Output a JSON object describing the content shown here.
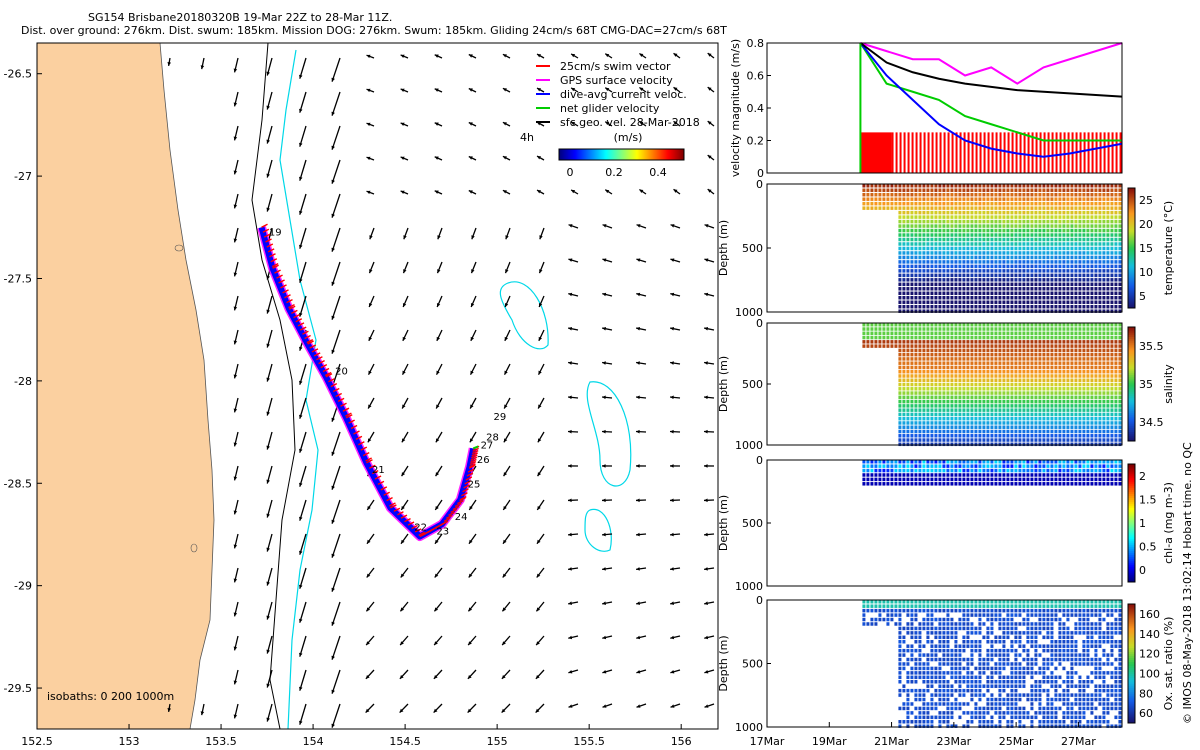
{
  "header": {
    "line1": "SG154 Brisbane20180320B 19-Mar 22Z to 28-Mar 11Z.",
    "line2": "Dist. over ground: 276km. Dist. swum: 185km. Mission DOG: 276km. Swum: 185km. Gliding 24cm/s 68T CMG-DAC=27cm/s 68T"
  },
  "legend": {
    "items": [
      {
        "label": "25cm/s swim vector",
        "color": "#ff0000"
      },
      {
        "label": "GPS surface velocity",
        "color": "#ff00ff"
      },
      {
        "label": "dive-avg current veloc.",
        "color": "#0000ff"
      },
      {
        "label": "net glider velocity",
        "color": "#00cc00"
      },
      {
        "label": "sfc geo. vel. 28-Mar-2018",
        "color": "#000000"
      }
    ],
    "time_tag": "4h",
    "colorbar_title": "(m/s)",
    "colorbar_ticks": [
      "0",
      "0.2",
      "0.4"
    ]
  },
  "isobaths_label": "isobaths: 0   200  1000m",
  "credit": "© IMOS 08-May-2018 13:02:14 Hobart time. no QC",
  "chart_data": [
    {
      "type": "map",
      "xlim": [
        152.5,
        156.2
      ],
      "ylim": [
        -29.7,
        -26.35
      ],
      "x_ticks": [
        "152.5",
        "153",
        "153.5",
        "154",
        "154.5",
        "155",
        "155.5",
        "156"
      ],
      "y_ticks": [
        "-26.5",
        "-27",
        "-27.5",
        "-28",
        "-28.5",
        "-29",
        "-29.5"
      ],
      "x_tick_values": [
        152.5,
        153,
        153.5,
        154,
        154.5,
        155,
        155.5,
        156
      ],
      "y_tick_values": [
        -26.5,
        -27,
        -27.5,
        -28,
        -28.5,
        -29,
        -29.5
      ],
      "land_color": "#fbd0a0",
      "glider_track": [
        {
          "lon": 153.72,
          "lat": -27.25
        },
        {
          "lon": 153.78,
          "lat": -27.45
        },
        {
          "lon": 153.87,
          "lat": -27.65
        },
        {
          "lon": 153.97,
          "lat": -27.82
        },
        {
          "lon": 154.07,
          "lat": -27.98
        },
        {
          "lon": 154.18,
          "lat": -28.18
        },
        {
          "lon": 154.29,
          "lat": -28.4
        },
        {
          "lon": 154.42,
          "lat": -28.62
        },
        {
          "lon": 154.58,
          "lat": -28.76
        },
        {
          "lon": 154.7,
          "lat": -28.7
        },
        {
          "lon": 154.8,
          "lat": -28.58
        },
        {
          "lon": 154.85,
          "lat": -28.42
        },
        {
          "lon": 154.87,
          "lat": -28.33
        }
      ],
      "day_labels": [
        {
          "text": "19",
          "lon": 153.76,
          "lat": -27.29
        },
        {
          "text": "20",
          "lon": 154.12,
          "lat": -27.97
        },
        {
          "text": "21",
          "lon": 154.32,
          "lat": -28.45
        },
        {
          "text": "22",
          "lon": 154.55,
          "lat": -28.73
        },
        {
          "text": "23",
          "lon": 154.67,
          "lat": -28.75
        },
        {
          "text": "24",
          "lon": 154.77,
          "lat": -28.68
        },
        {
          "text": "25",
          "lon": 154.84,
          "lat": -28.52
        },
        {
          "text": "26",
          "lon": 154.89,
          "lat": -28.4
        },
        {
          "text": "27",
          "lon": 154.91,
          "lat": -28.33
        },
        {
          "text": "28",
          "lon": 154.94,
          "lat": -28.29
        },
        {
          "text": "29",
          "lon": 154.98,
          "lat": -28.19
        }
      ]
    },
    {
      "type": "line",
      "ylabel": "velocity magnitude (m/s)",
      "ylim": [
        0,
        0.8
      ],
      "y_ticks": [
        "0",
        "0.2",
        "0.4",
        "0.6",
        "0.8"
      ],
      "series": [
        {
          "name": "net glider velocity",
          "color": "#00cc00",
          "values": [
            0.8,
            0.55,
            0.5,
            0.45,
            0.35,
            0.3,
            0.25,
            0.2,
            0.2,
            0.2,
            0.2
          ]
        },
        {
          "name": "GPS surface velocity",
          "color": "#ff00ff",
          "values": [
            0.8,
            0.75,
            0.7,
            0.7,
            0.6,
            0.65,
            0.55,
            0.65,
            0.7,
            0.75,
            0.8
          ]
        },
        {
          "name": "dive-avg current veloc.",
          "color": "#0000ff",
          "values": [
            0.8,
            0.6,
            0.45,
            0.3,
            0.2,
            0.15,
            0.12,
            0.1,
            0.12,
            0.15,
            0.18
          ]
        },
        {
          "name": "sfc geo. vel.",
          "color": "#000000",
          "values": [
            0.8,
            0.68,
            0.62,
            0.58,
            0.55,
            0.53,
            0.51,
            0.5,
            0.49,
            0.48,
            0.47
          ]
        }
      ],
      "swim_level": 0.25
    },
    {
      "type": "heatmap",
      "ylabel": "Depth (m)",
      "clabel": "temperature (°C)",
      "y_ticks": [
        "0",
        "500",
        "1000"
      ],
      "c_ticks": [
        "5",
        "10",
        "15",
        "20",
        "25"
      ],
      "clim": [
        4,
        28
      ]
    },
    {
      "type": "heatmap",
      "ylabel": "Depth (m)",
      "clabel": "salinity",
      "y_ticks": [
        "0",
        "500",
        "1000"
      ],
      "c_ticks": [
        "34.5",
        "35",
        "35.5"
      ],
      "clim": [
        34.3,
        35.8
      ]
    },
    {
      "type": "heatmap",
      "ylabel": "Depth (m)",
      "clabel": "chl-a (mg m-3)",
      "y_ticks": [
        "0",
        "500",
        "1000"
      ],
      "c_ticks": [
        "0",
        "0.5",
        "1",
        "1.5",
        "2"
      ],
      "clim": [
        0,
        2
      ]
    },
    {
      "type": "heatmap",
      "ylabel": "Depth (m)",
      "clabel": "Ox. sat. ratio (%)",
      "y_ticks": [
        "0",
        "500",
        "1000"
      ],
      "c_ticks": [
        "60",
        "80",
        "100",
        "120",
        "140",
        "160"
      ],
      "clim": [
        55,
        170
      ],
      "x_ticks": [
        "17Mar",
        "19Mar",
        "21Mar",
        "23Mar",
        "25Mar",
        "27Mar"
      ]
    }
  ]
}
